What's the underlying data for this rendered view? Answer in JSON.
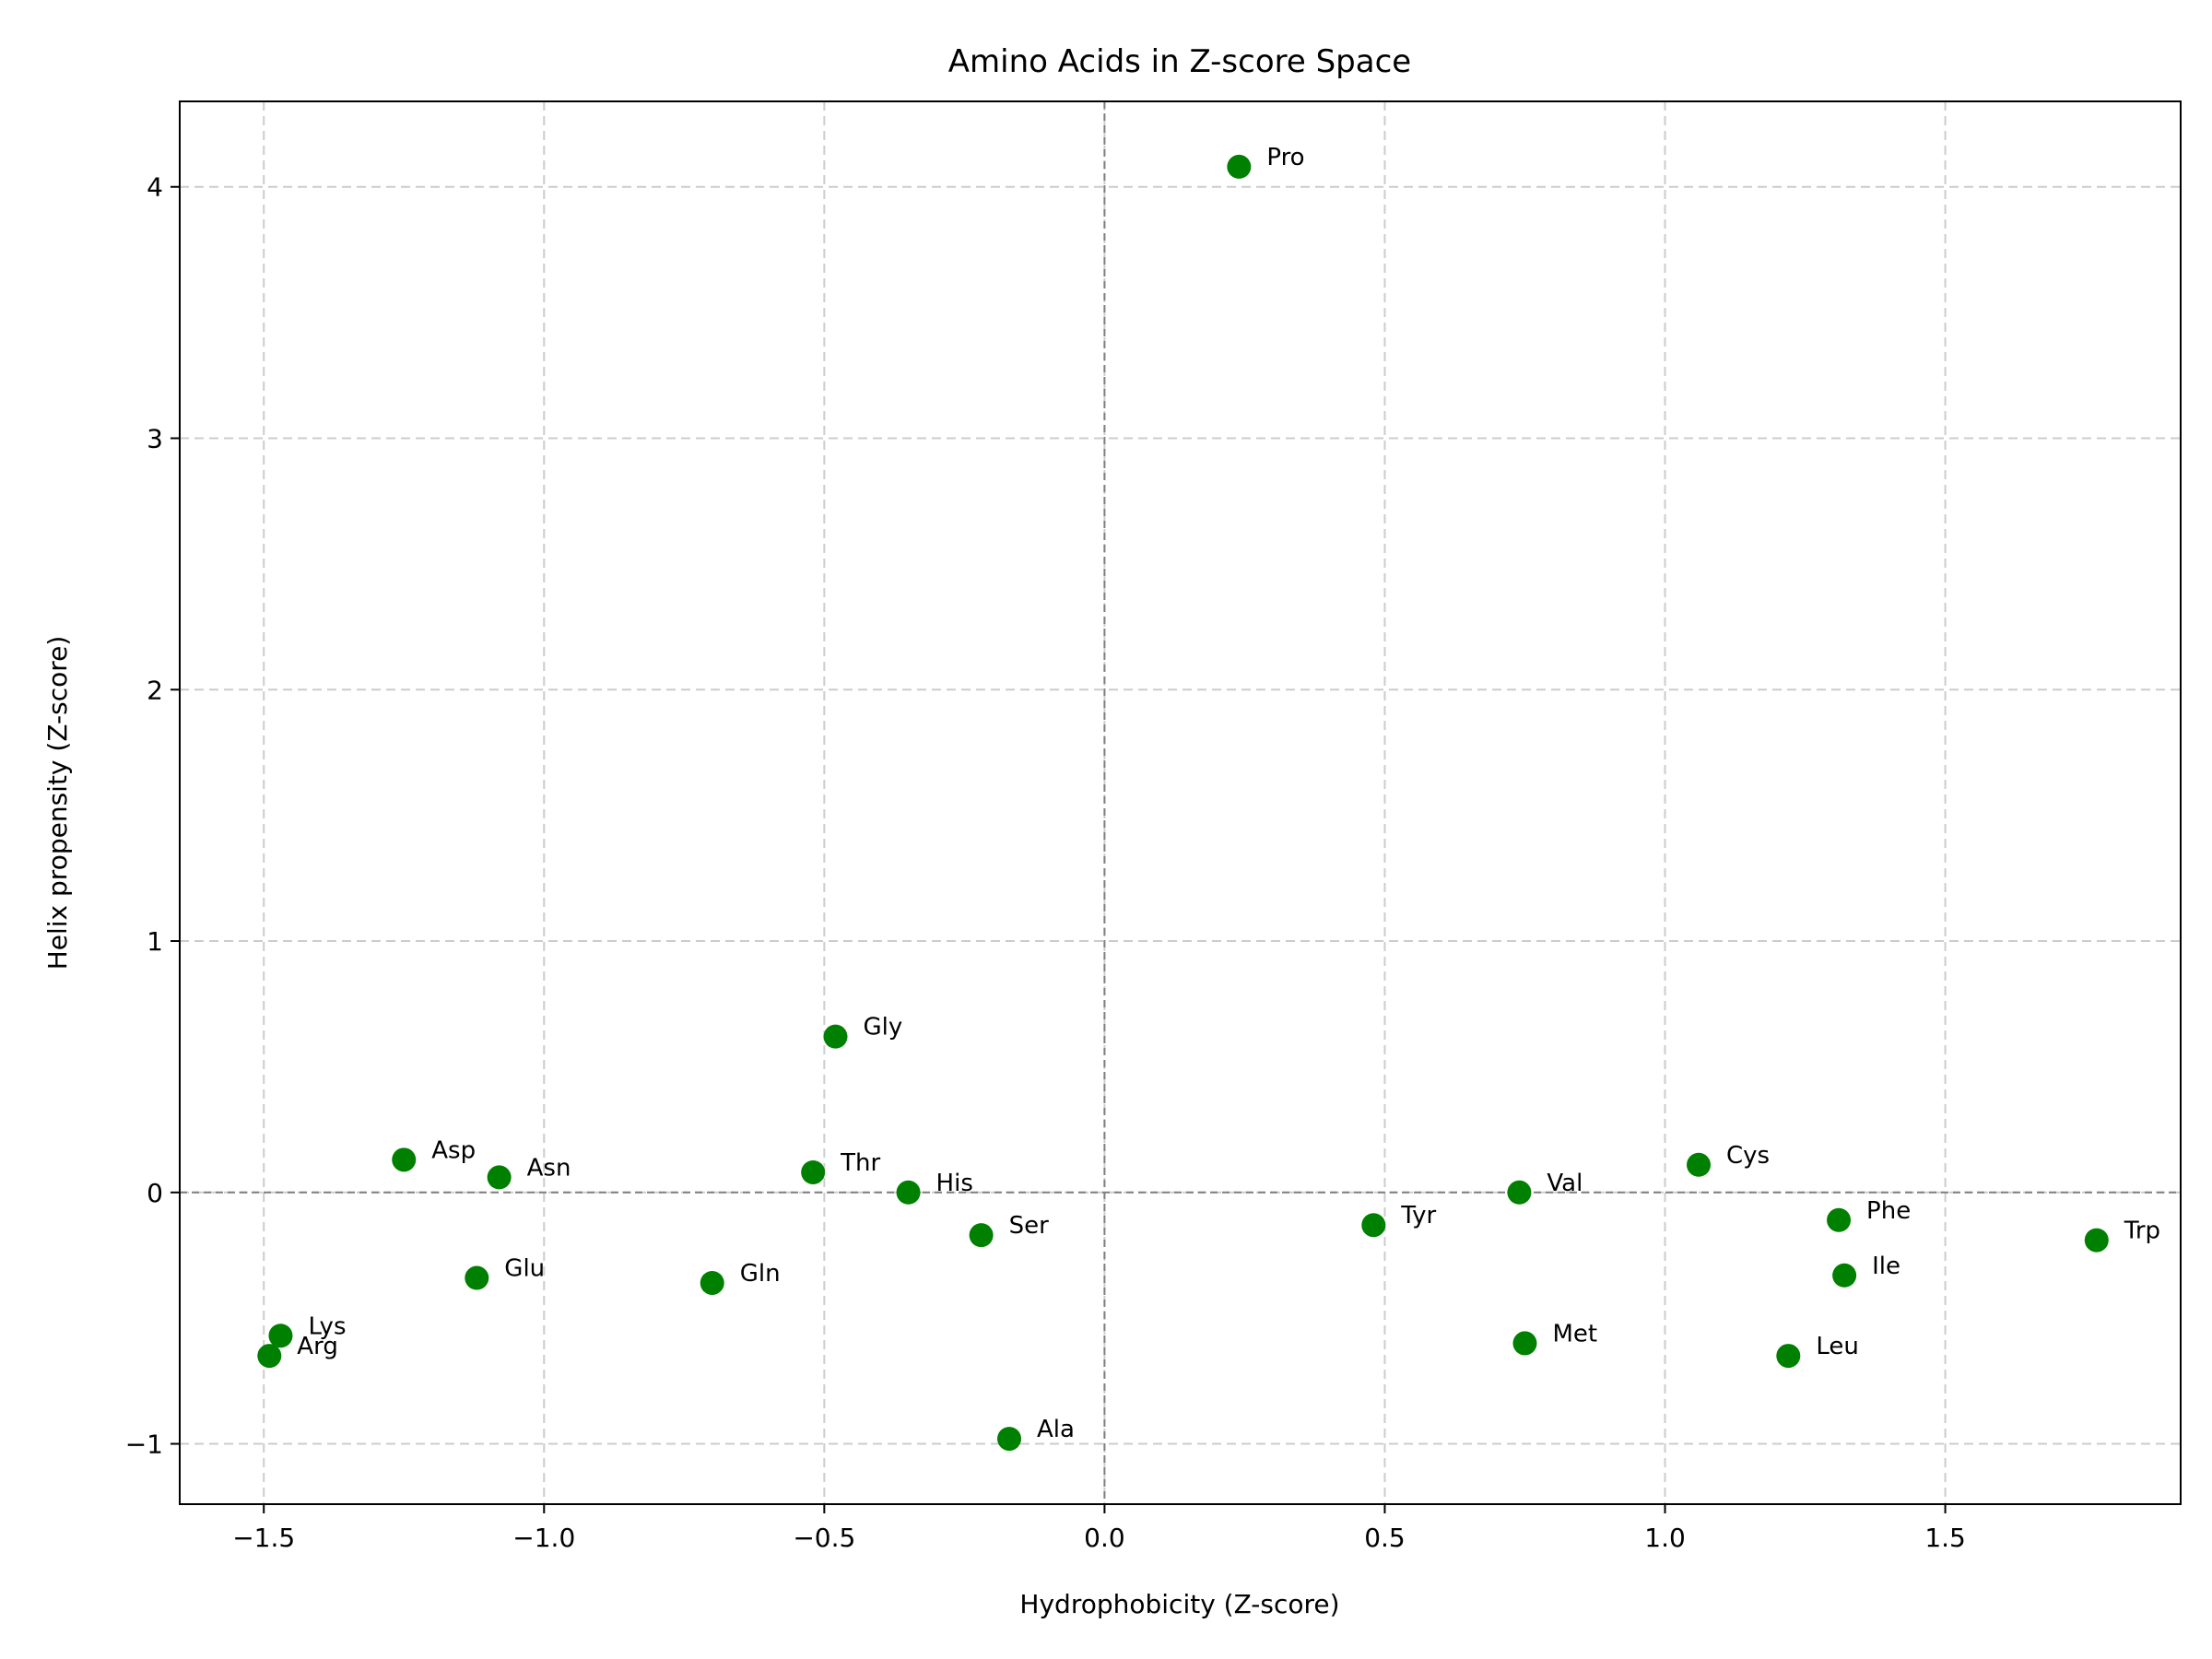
{
  "chart_data": {
    "type": "scatter",
    "title": "Amino Acids in Z-score Space",
    "xlabel": "Hydrophobicity (Z-score)",
    "ylabel": "Helix propensity (Z-score)",
    "xlim": [
      -1.65,
      1.92
    ],
    "ylim": [
      -1.24,
      4.34
    ],
    "xticks": [
      -1.5,
      -1.0,
      -0.5,
      0.0,
      0.5,
      1.0,
      1.5
    ],
    "xtick_labels": [
      "−1.5",
      "−1.0",
      "−0.5",
      "0.0",
      "0.5",
      "1.0",
      "1.5"
    ],
    "yticks": [
      -1,
      0,
      1,
      2,
      3,
      4
    ],
    "ytick_labels": [
      "−1",
      "0",
      "1",
      "2",
      "3",
      "4"
    ],
    "grid": true,
    "reference_lines": {
      "x": 0,
      "y": 0
    },
    "marker_color": "#008000",
    "points": [
      {
        "label": "Pro",
        "x": 0.24,
        "y": 4.08
      },
      {
        "label": "Gly",
        "x": -0.48,
        "y": 0.62
      },
      {
        "label": "Asp",
        "x": -1.25,
        "y": 0.13
      },
      {
        "label": "Asn",
        "x": -1.08,
        "y": 0.06
      },
      {
        "label": "Thr",
        "x": -0.52,
        "y": 0.08
      },
      {
        "label": "His",
        "x": -0.35,
        "y": 0.0
      },
      {
        "label": "Ser",
        "x": -0.22,
        "y": -0.17
      },
      {
        "label": "Glu",
        "x": -1.12,
        "y": -0.34
      },
      {
        "label": "Gln",
        "x": -0.7,
        "y": -0.36
      },
      {
        "label": "Lys",
        "x": -1.47,
        "y": -0.57
      },
      {
        "label": "Arg",
        "x": -1.49,
        "y": -0.65
      },
      {
        "label": "Ala",
        "x": -0.17,
        "y": -0.98
      },
      {
        "label": "Tyr",
        "x": 0.48,
        "y": -0.13
      },
      {
        "label": "Val",
        "x": 0.74,
        "y": 0.0
      },
      {
        "label": "Met",
        "x": 0.75,
        "y": -0.6
      },
      {
        "label": "Cys",
        "x": 1.06,
        "y": 0.11
      },
      {
        "label": "Phe",
        "x": 1.31,
        "y": -0.11
      },
      {
        "label": "Ile",
        "x": 1.32,
        "y": -0.33
      },
      {
        "label": "Leu",
        "x": 1.22,
        "y": -0.65
      },
      {
        "label": "Trp",
        "x": 1.77,
        "y": -0.19
      }
    ]
  }
}
